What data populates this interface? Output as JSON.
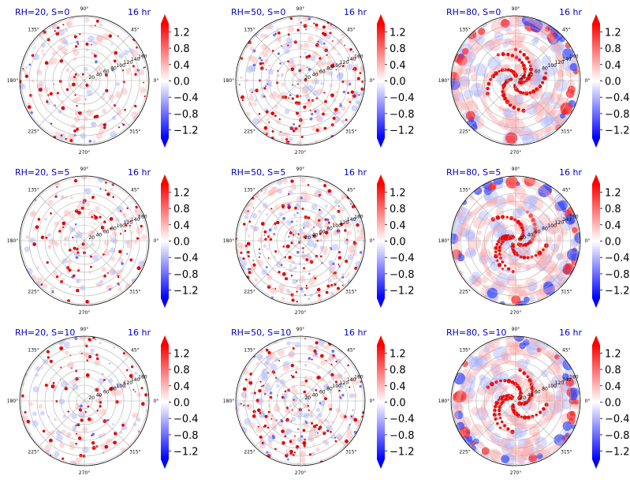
{
  "chart_data": [
    {
      "type": "heatmap",
      "subtype": "polar",
      "title_left": "RH=20, S=0",
      "title_right": "16 hr",
      "cmap": "bwr",
      "vlim": [
        -1.4,
        1.4
      ],
      "colorbar_ticks": [
        "1.2",
        "0.8",
        "0.4",
        "0.0",
        "−0.4",
        "−0.8",
        "−1.2"
      ],
      "theta_ticks": [
        "0°",
        "45°",
        "90°",
        "135°",
        "180°",
        "225°",
        "270°",
        "315°"
      ],
      "r_ticks": [
        "20",
        "40",
        "60",
        "80",
        "100",
        "120",
        "140",
        "160"
      ],
      "pattern": "sparse_dots"
    },
    {
      "type": "heatmap",
      "subtype": "polar",
      "title_left": "RH=50, S=0",
      "title_right": "16 hr",
      "cmap": "bwr",
      "vlim": [
        -1.4,
        1.4
      ],
      "colorbar_ticks": [
        "1.2",
        "0.8",
        "0.4",
        "0.0",
        "−0.4",
        "−0.8",
        "−1.2"
      ],
      "theta_ticks": [
        "0°",
        "45°",
        "90°",
        "135°",
        "180°",
        "225°",
        "270°",
        "315°"
      ],
      "r_ticks": [
        "20",
        "40",
        "60",
        "80",
        "100",
        "120",
        "140",
        "160"
      ],
      "pattern": "dense_dots"
    },
    {
      "type": "heatmap",
      "subtype": "polar",
      "title_left": "RH=80, S=0",
      "title_right": "16 hr",
      "cmap": "bwr",
      "vlim": [
        -1.4,
        1.4
      ],
      "colorbar_ticks": [
        "1.2",
        "0.8",
        "0.4",
        "0.0",
        "−0.4",
        "−0.8",
        "−1.2"
      ],
      "theta_ticks": [
        "0°",
        "45°",
        "90°",
        "135°",
        "180°",
        "225°",
        "270°",
        "315°"
      ],
      "r_ticks": [
        "20",
        "40",
        "60",
        "80",
        "100",
        "120",
        "140",
        "160"
      ],
      "pattern": "spiral_bands"
    },
    {
      "type": "heatmap",
      "subtype": "polar",
      "title_left": "RH=20, S=5",
      "title_right": "16 hr",
      "cmap": "bwr",
      "vlim": [
        -1.4,
        1.4
      ],
      "colorbar_ticks": [
        "1.2",
        "0.8",
        "0.4",
        "0.0",
        "−0.4",
        "−0.8",
        "−1.2"
      ],
      "theta_ticks": [
        "0°",
        "45°",
        "90°",
        "135°",
        "180°",
        "225°",
        "270°",
        "315°"
      ],
      "r_ticks": [
        "20",
        "40",
        "60",
        "80",
        "100",
        "120",
        "140",
        "160"
      ],
      "pattern": "sparse_dots"
    },
    {
      "type": "heatmap",
      "subtype": "polar",
      "title_left": "RH=50, S=5",
      "title_right": "16 hr",
      "cmap": "bwr",
      "vlim": [
        -1.4,
        1.4
      ],
      "colorbar_ticks": [
        "1.2",
        "0.8",
        "0.4",
        "0.0",
        "−0.4",
        "−0.8",
        "−1.2"
      ],
      "theta_ticks": [
        "0°",
        "45°",
        "90°",
        "135°",
        "180°",
        "225°",
        "270°",
        "315°"
      ],
      "r_ticks": [
        "20",
        "40",
        "60",
        "80",
        "100",
        "120",
        "140",
        "160"
      ],
      "pattern": "dense_dots"
    },
    {
      "type": "heatmap",
      "subtype": "polar",
      "title_left": "RH=80, S=5",
      "title_right": "16 hr",
      "cmap": "bwr",
      "vlim": [
        -1.4,
        1.4
      ],
      "colorbar_ticks": [
        "1.2",
        "0.8",
        "0.4",
        "0.0",
        "−0.4",
        "−0.8",
        "−1.2"
      ],
      "theta_ticks": [
        "0°",
        "45°",
        "90°",
        "135°",
        "180°",
        "225°",
        "270°",
        "315°"
      ],
      "r_ticks": [
        "20",
        "40",
        "60",
        "80",
        "100",
        "120",
        "140",
        "160"
      ],
      "pattern": "spiral_bands"
    },
    {
      "type": "heatmap",
      "subtype": "polar",
      "title_left": "RH=20, S=10",
      "title_right": "16 hr",
      "cmap": "bwr",
      "vlim": [
        -1.4,
        1.4
      ],
      "colorbar_ticks": [
        "1.2",
        "0.8",
        "0.4",
        "0.0",
        "−0.4",
        "−0.8",
        "−1.2"
      ],
      "theta_ticks": [
        "0°",
        "45°",
        "90°",
        "135°",
        "180°",
        "225°",
        "270°",
        "315°"
      ],
      "r_ticks": [
        "20",
        "40",
        "60",
        "80",
        "100",
        "120",
        "140",
        "160"
      ],
      "pattern": "sparse_dots"
    },
    {
      "type": "heatmap",
      "subtype": "polar",
      "title_left": "RH=50, S=10",
      "title_right": "16 hr",
      "cmap": "bwr",
      "vlim": [
        -1.4,
        1.4
      ],
      "colorbar_ticks": [
        "1.2",
        "0.8",
        "0.4",
        "0.0",
        "−0.4",
        "−0.8",
        "−1.2"
      ],
      "theta_ticks": [
        "0°",
        "45°",
        "90°",
        "135°",
        "180°",
        "225°",
        "270°",
        "315°"
      ],
      "r_ticks": [
        "20",
        "40",
        "60",
        "80",
        "100",
        "120",
        "140",
        "160"
      ],
      "pattern": "dense_dots"
    },
    {
      "type": "heatmap",
      "subtype": "polar",
      "title_left": "RH=80, S=10",
      "title_right": "16 hr",
      "cmap": "bwr",
      "vlim": [
        -1.4,
        1.4
      ],
      "colorbar_ticks": [
        "1.2",
        "0.8",
        "0.4",
        "0.0",
        "−0.4",
        "−0.8",
        "−1.2"
      ],
      "theta_ticks": [
        "0°",
        "45°",
        "90°",
        "135°",
        "180°",
        "225°",
        "270°",
        "315°"
      ],
      "r_ticks": [
        "20",
        "40",
        "60",
        "80",
        "100",
        "120",
        "140",
        "160"
      ],
      "pattern": "spiral_bands"
    }
  ],
  "colors": {
    "title": "#0000cc",
    "max": "#ff0000",
    "mid": "#ffffff",
    "min": "#0000ff",
    "grid": "#b0b0b0"
  }
}
